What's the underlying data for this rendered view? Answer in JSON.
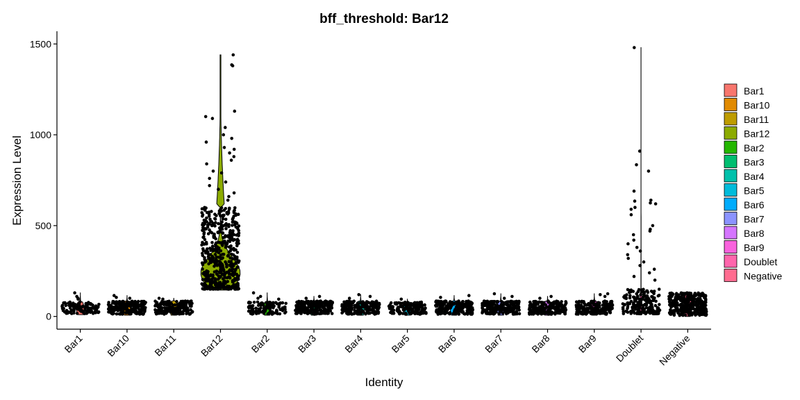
{
  "chart_data": {
    "type": "violin",
    "title": "bff_threshold: Bar12",
    "xlabel": "Identity",
    "ylabel": "Expression Level",
    "ylim": [
      -70,
      1570
    ],
    "yticks": [
      0,
      500,
      1000,
      1500
    ],
    "categories": [
      "Bar1",
      "Bar10",
      "Bar11",
      "Bar12",
      "Bar2",
      "Bar3",
      "Bar4",
      "Bar5",
      "Bar6",
      "Bar7",
      "Bar8",
      "Bar9",
      "Doublet",
      "Negative"
    ],
    "colors": [
      "#F8766D",
      "#E18A00",
      "#BE9C00",
      "#8CAB00",
      "#24B700",
      "#00BE70",
      "#00C1AB",
      "#00BBDA",
      "#00ACFC",
      "#8B93FF",
      "#D575FE",
      "#F962DD",
      "#FF65AC",
      "#FF6C90"
    ],
    "series": [
      {
        "name": "Bar1",
        "median": 35,
        "q_low": 15,
        "q_high": 80,
        "max": 130,
        "n_points": 130,
        "outliers": [
          130,
          110,
          100,
          95
        ]
      },
      {
        "name": "Bar10",
        "median": 35,
        "q_low": 12,
        "q_high": 85,
        "max": 115,
        "n_points": 220,
        "outliers": [
          115,
          105,
          100
        ]
      },
      {
        "name": "Bar11",
        "median": 35,
        "q_low": 12,
        "q_high": 85,
        "max": 100,
        "n_points": 200,
        "outliers": [
          100,
          95
        ]
      },
      {
        "name": "Bar12",
        "median": 240,
        "q_low": 150,
        "q_high": 600,
        "max": 1440,
        "n_points": 520,
        "outliers": [
          1440,
          1385,
          1380,
          1130,
          1100,
          1090,
          1040,
          1000,
          980,
          960,
          930,
          920,
          900,
          880,
          860,
          840,
          800,
          790,
          760,
          740,
          720,
          700,
          680,
          660,
          640
        ]
      },
      {
        "name": "Bar2",
        "median": 35,
        "q_low": 12,
        "q_high": 80,
        "max": 130,
        "n_points": 110,
        "outliers": [
          130,
          110,
          100,
          95
        ]
      },
      {
        "name": "Bar3",
        "median": 35,
        "q_low": 12,
        "q_high": 85,
        "max": 110,
        "n_points": 220,
        "outliers": [
          110,
          100
        ]
      },
      {
        "name": "Bar4",
        "median": 35,
        "q_low": 12,
        "q_high": 85,
        "max": 120,
        "n_points": 200,
        "outliers": [
          120,
          110,
          100
        ]
      },
      {
        "name": "Bar5",
        "median": 35,
        "q_low": 12,
        "q_high": 80,
        "max": 95,
        "n_points": 150,
        "outliers": [
          95
        ]
      },
      {
        "name": "Bar6",
        "median": 35,
        "q_low": 12,
        "q_high": 85,
        "max": 115,
        "n_points": 200,
        "outliers": [
          115,
          105
        ]
      },
      {
        "name": "Bar7",
        "median": 35,
        "q_low": 12,
        "q_high": 85,
        "max": 125,
        "n_points": 210,
        "outliers": [
          125,
          110,
          100
        ]
      },
      {
        "name": "Bar8",
        "median": 35,
        "q_low": 12,
        "q_high": 85,
        "max": 110,
        "n_points": 190,
        "outliers": [
          110,
          100
        ]
      },
      {
        "name": "Bar9",
        "median": 35,
        "q_low": 12,
        "q_high": 85,
        "max": 125,
        "n_points": 210,
        "outliers": [
          125,
          120,
          110
        ]
      },
      {
        "name": "Doublet",
        "median": 45,
        "q_low": 15,
        "q_high": 150,
        "max": 1480,
        "n_points": 200,
        "outliers": [
          1480,
          910,
          835,
          800,
          690,
          640,
          635,
          625,
          620,
          600,
          590,
          560,
          500,
          480,
          470,
          450,
          420,
          400,
          380,
          360,
          340,
          320,
          300,
          280,
          260,
          240,
          220,
          200
        ]
      },
      {
        "name": "Negative",
        "median": 60,
        "q_low": 5,
        "q_high": 130,
        "max": 135,
        "n_points": 300,
        "outliers": []
      }
    ],
    "legend": {
      "position": "right",
      "entries": [
        "Bar1",
        "Bar10",
        "Bar11",
        "Bar12",
        "Bar2",
        "Bar3",
        "Bar4",
        "Bar5",
        "Bar6",
        "Bar7",
        "Bar8",
        "Bar9",
        "Doublet",
        "Negative"
      ]
    },
    "grid": false
  }
}
